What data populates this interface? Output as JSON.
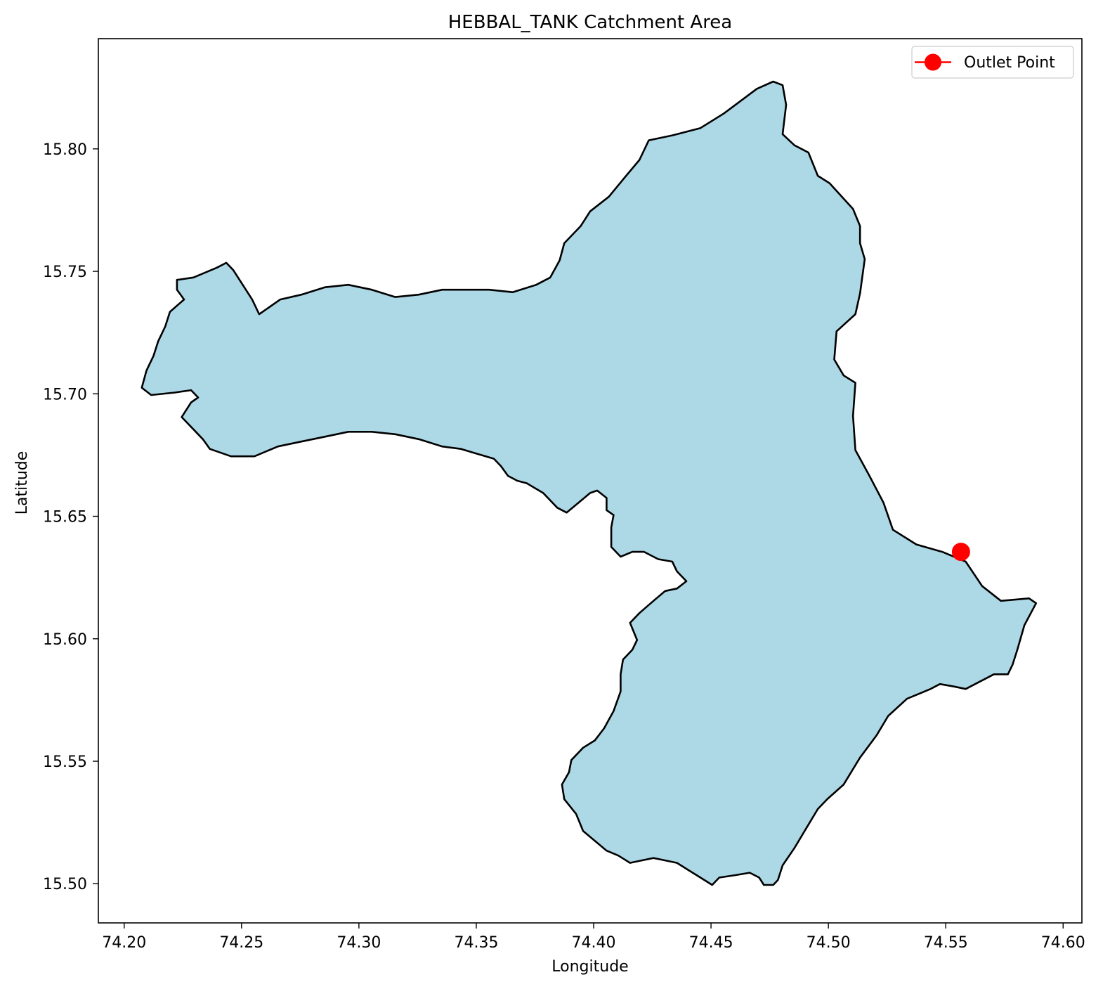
{
  "chart_data": {
    "type": "map",
    "title": "HEBBAL_TANK Catchment Area",
    "xlabel": "Longitude",
    "ylabel": "Latitude",
    "xlim": [
      74.189,
      74.608
    ],
    "ylim": [
      15.484,
      15.845
    ],
    "xticks": [
      74.2,
      74.25,
      74.3,
      74.35,
      74.4,
      74.45,
      74.5,
      74.55,
      74.6
    ],
    "xtick_labels": [
      "74.20",
      "74.25",
      "74.30",
      "74.35",
      "74.40",
      "74.45",
      "74.50",
      "74.55",
      "74.60"
    ],
    "yticks": [
      15.5,
      15.55,
      15.6,
      15.65,
      15.7,
      15.75,
      15.8
    ],
    "ytick_labels": [
      "15.50",
      "15.55",
      "15.60",
      "15.65",
      "15.70",
      "15.75",
      "15.80"
    ],
    "grid": false,
    "legend": {
      "position": "top-right",
      "entries": [
        {
          "label": "Outlet Point",
          "color": "#ff0000",
          "marker": "circle"
        }
      ]
    },
    "catchment": {
      "fill_color": "#add8e6",
      "edge_color": "#000000",
      "boundary": [
        [
          74.4765,
          15.8275
        ],
        [
          74.4805,
          15.826
        ],
        [
          74.482,
          15.818
        ],
        [
          74.4805,
          15.806
        ],
        [
          74.4855,
          15.8015
        ],
        [
          74.4915,
          15.7985
        ],
        [
          74.4955,
          15.789
        ],
        [
          74.5005,
          15.786
        ],
        [
          74.5105,
          15.7755
        ],
        [
          74.5135,
          15.7685
        ],
        [
          74.5135,
          15.7615
        ],
        [
          74.5155,
          15.755
        ],
        [
          74.5135,
          15.741
        ],
        [
          74.5115,
          15.7325
        ],
        [
          74.5075,
          15.729
        ],
        [
          74.5035,
          15.7255
        ],
        [
          74.5025,
          15.714
        ],
        [
          74.5065,
          15.7075
        ],
        [
          74.5115,
          15.7045
        ],
        [
          74.5105,
          15.691
        ],
        [
          74.5115,
          15.677
        ],
        [
          74.5175,
          15.6665
        ],
        [
          74.5235,
          15.6555
        ],
        [
          74.5275,
          15.6445
        ],
        [
          74.5375,
          15.6385
        ],
        [
          74.5485,
          15.6355
        ],
        [
          74.5585,
          15.6315
        ],
        [
          74.5655,
          15.6215
        ],
        [
          74.5735,
          15.6155
        ],
        [
          74.5855,
          15.6165
        ],
        [
          74.5885,
          15.6145
        ],
        [
          74.5835,
          15.6055
        ],
        [
          74.5805,
          15.5955
        ],
        [
          74.5785,
          15.5895
        ],
        [
          74.5765,
          15.5855
        ],
        [
          74.5705,
          15.5855
        ],
        [
          74.5665,
          15.5835
        ],
        [
          74.5585,
          15.5795
        ],
        [
          74.5535,
          15.5805
        ],
        [
          74.5475,
          15.5815
        ],
        [
          74.5435,
          15.5795
        ],
        [
          74.5385,
          15.5775
        ],
        [
          74.5335,
          15.5755
        ],
        [
          74.5255,
          15.5685
        ],
        [
          74.5205,
          15.5605
        ],
        [
          74.5135,
          15.5515
        ],
        [
          74.5065,
          15.5405
        ],
        [
          74.4995,
          15.5345
        ],
        [
          74.4955,
          15.5305
        ],
        [
          74.4905,
          15.5225
        ],
        [
          74.4855,
          15.5145
        ],
        [
          74.4805,
          15.5075
        ],
        [
          74.4785,
          15.5015
        ],
        [
          74.4765,
          15.4995
        ],
        [
          74.4725,
          15.4995
        ],
        [
          74.4705,
          15.5025
        ],
        [
          74.4665,
          15.5045
        ],
        [
          74.4605,
          15.5035
        ],
        [
          74.4535,
          15.5025
        ],
        [
          74.4505,
          15.4995
        ],
        [
          74.4455,
          15.5025
        ],
        [
          74.4405,
          15.5055
        ],
        [
          74.4355,
          15.5085
        ],
        [
          74.4305,
          15.5095
        ],
        [
          74.4255,
          15.5105
        ],
        [
          74.4205,
          15.5095
        ],
        [
          74.4155,
          15.5085
        ],
        [
          74.4105,
          15.5115
        ],
        [
          74.4055,
          15.5135
        ],
        [
          74.4005,
          15.5175
        ],
        [
          74.3955,
          15.5215
        ],
        [
          74.3925,
          15.5285
        ],
        [
          74.3875,
          15.5345
        ],
        [
          74.3865,
          15.5405
        ],
        [
          74.3895,
          15.5455
        ],
        [
          74.3905,
          15.5505
        ],
        [
          74.3955,
          15.5555
        ],
        [
          74.4005,
          15.5585
        ],
        [
          74.4045,
          15.5635
        ],
        [
          74.4085,
          15.5705
        ],
        [
          74.4115,
          15.5785
        ],
        [
          74.4115,
          15.5855
        ],
        [
          74.4125,
          15.5915
        ],
        [
          74.4165,
          15.5955
        ],
        [
          74.4185,
          15.5995
        ],
        [
          74.4155,
          15.6065
        ],
        [
          74.4195,
          15.6105
        ],
        [
          74.4255,
          15.6155
        ],
        [
          74.4305,
          15.6195
        ],
        [
          74.4355,
          15.6205
        ],
        [
          74.4395,
          15.6235
        ],
        [
          74.4355,
          15.6275
        ],
        [
          74.4335,
          15.6315
        ],
        [
          74.4275,
          15.6325
        ],
        [
          74.4215,
          15.6355
        ],
        [
          74.4165,
          15.6355
        ],
        [
          74.4115,
          15.6335
        ],
        [
          74.4075,
          15.6375
        ],
        [
          74.4075,
          15.6455
        ],
        [
          74.4085,
          15.6505
        ],
        [
          74.4055,
          15.6525
        ],
        [
          74.4055,
          15.6575
        ],
        [
          74.4015,
          15.6605
        ],
        [
          74.3985,
          15.6595
        ],
        [
          74.3935,
          15.6555
        ],
        [
          74.3885,
          15.6515
        ],
        [
          74.3845,
          15.6535
        ],
        [
          74.3785,
          15.6595
        ],
        [
          74.3715,
          15.6635
        ],
        [
          74.3675,
          15.6645
        ],
        [
          74.3635,
          15.6665
        ],
        [
          74.3605,
          15.6705
        ],
        [
          74.3575,
          15.6735
        ],
        [
          74.3505,
          15.6755
        ],
        [
          74.3435,
          15.6775
        ],
        [
          74.3355,
          15.6785
        ],
        [
          74.3255,
          15.6815
        ],
        [
          74.3155,
          15.6835
        ],
        [
          74.3055,
          15.6845
        ],
        [
          74.2955,
          15.6845
        ],
        [
          74.2855,
          15.6825
        ],
        [
          74.2755,
          15.6805
        ],
        [
          74.2655,
          15.6785
        ],
        [
          74.2555,
          15.6745
        ],
        [
          74.2455,
          15.6745
        ],
        [
          74.2365,
          15.6775
        ],
        [
          74.2335,
          15.6815
        ],
        [
          74.2285,
          15.6865
        ],
        [
          74.2245,
          15.6905
        ],
        [
          74.2285,
          15.6965
        ],
        [
          74.2315,
          15.6985
        ],
        [
          74.2285,
          15.7015
        ],
        [
          74.2215,
          15.7005
        ],
        [
          74.2115,
          15.6995
        ],
        [
          74.2075,
          15.7025
        ],
        [
          74.2095,
          15.7095
        ],
        [
          74.2125,
          15.7155
        ],
        [
          74.2145,
          15.7215
        ],
        [
          74.2175,
          15.7275
        ],
        [
          74.2195,
          15.7335
        ],
        [
          74.2255,
          15.7385
        ],
        [
          74.2225,
          15.7425
        ],
        [
          74.2225,
          15.7465
        ],
        [
          74.2295,
          15.7475
        ],
        [
          74.2345,
          15.7495
        ],
        [
          74.2395,
          15.7515
        ],
        [
          74.2435,
          15.7535
        ],
        [
          74.2465,
          15.7505
        ],
        [
          74.2505,
          15.7445
        ],
        [
          74.2545,
          15.7385
        ],
        [
          74.2575,
          15.7325
        ],
        [
          74.2605,
          15.7345
        ],
        [
          74.2665,
          15.7385
        ],
        [
          74.2755,
          15.7405
        ],
        [
          74.2855,
          15.7435
        ],
        [
          74.2955,
          15.7445
        ],
        [
          74.3055,
          15.7425
        ],
        [
          74.3155,
          15.7395
        ],
        [
          74.3255,
          15.7405
        ],
        [
          74.3355,
          15.7425
        ],
        [
          74.3455,
          15.7425
        ],
        [
          74.3555,
          15.7425
        ],
        [
          74.3655,
          15.7415
        ],
        [
          74.3755,
          15.7445
        ],
        [
          74.3815,
          15.7475
        ],
        [
          74.3855,
          15.7545
        ],
        [
          74.3875,
          15.7615
        ],
        [
          74.3945,
          15.7685
        ],
        [
          74.3985,
          15.7745
        ],
        [
          74.4065,
          15.7805
        ],
        [
          74.4125,
          15.7875
        ],
        [
          74.4195,
          15.7955
        ],
        [
          74.4235,
          15.8035
        ],
        [
          74.4335,
          15.8055
        ],
        [
          74.4455,
          15.8085
        ],
        [
          74.4555,
          15.8145
        ],
        [
          74.4625,
          15.8195
        ],
        [
          74.4695,
          15.8245
        ]
      ]
    },
    "outlet_point": {
      "label": "Outlet Point",
      "lon": 74.5565,
      "lat": 15.6355,
      "color": "#ff0000"
    }
  }
}
